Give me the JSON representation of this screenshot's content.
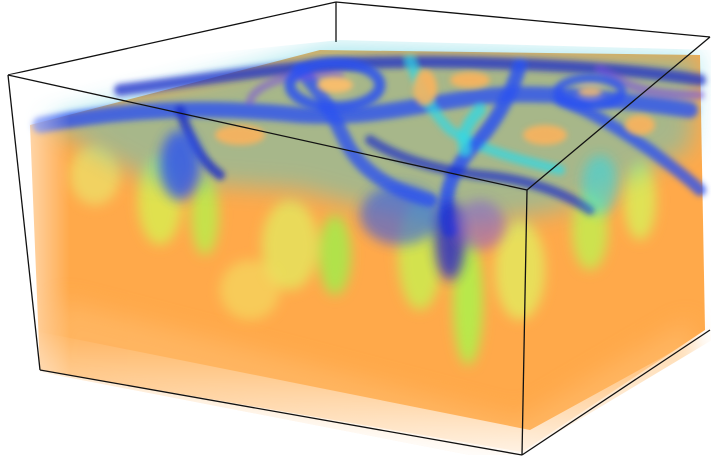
{
  "scene": {
    "subject": "volume-rendering",
    "background_color": "#ffffff",
    "frame_color": "#111111",
    "palette": {
      "body": "#ffa94a",
      "body_light": "#ffc98a",
      "yellow": "#f2f25a",
      "green": "#8ef04a",
      "cyan": "#2fd8e6",
      "blue": "#2a52f0",
      "deep_blue": "#1a2cc8",
      "violet": "#7a4ee0"
    }
  }
}
